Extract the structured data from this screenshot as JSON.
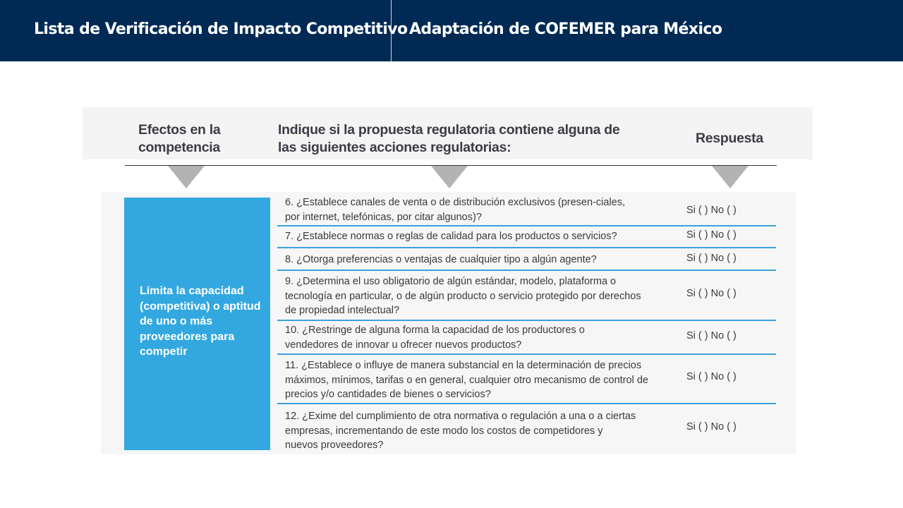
{
  "header": {
    "title_left": "Lista de Verificación de Impacto Competitivo",
    "title_right": "Adaptación de COFEMER para México"
  },
  "table": {
    "columns": [
      "Efectos en la competencia",
      "Indique si la propuesta regulatoria contiene alguna de las siguientes acciones regulatorias:",
      "Respuesta"
    ],
    "effect": "Límita la capacidad (competitiva) o aptitud de uno o más proveedores para competir",
    "answer_template": "Si (    )   No (    )",
    "questions": [
      "6. ¿Establece canales de venta o de distribución exclusivos (presen-ciales, por internet, telefónicas, por citar algunos)?",
      "7. ¿Establece normas o reglas de calidad para los productos o servicios?",
      "8. ¿Otorga preferencias o ventajas de cualquier tipo a algún agente?",
      "9. ¿Determina el uso obligatorio de algún estándar, modelo, plataforma o tecnología en particular, o de algún producto o servicio protegido por derechos de propiedad intelectual?",
      "10. ¿Restringe de alguna forma la capacidad de los productores o vendedores de innovar u ofrecer nuevos productos?",
      "11. ¿Establece o influye de manera substancial en la determinación de precios máximos, mínimos, tarifas o en general, cualquier otro mecanismo de control de precios y/o cantidades de bienes o servicios?",
      "12. ¿Exime del cumplimiento de otra normativa o regulación a una o a ciertas empresas, incrementando de este modo los costos de competidores y nuevos proveedores?"
    ]
  }
}
